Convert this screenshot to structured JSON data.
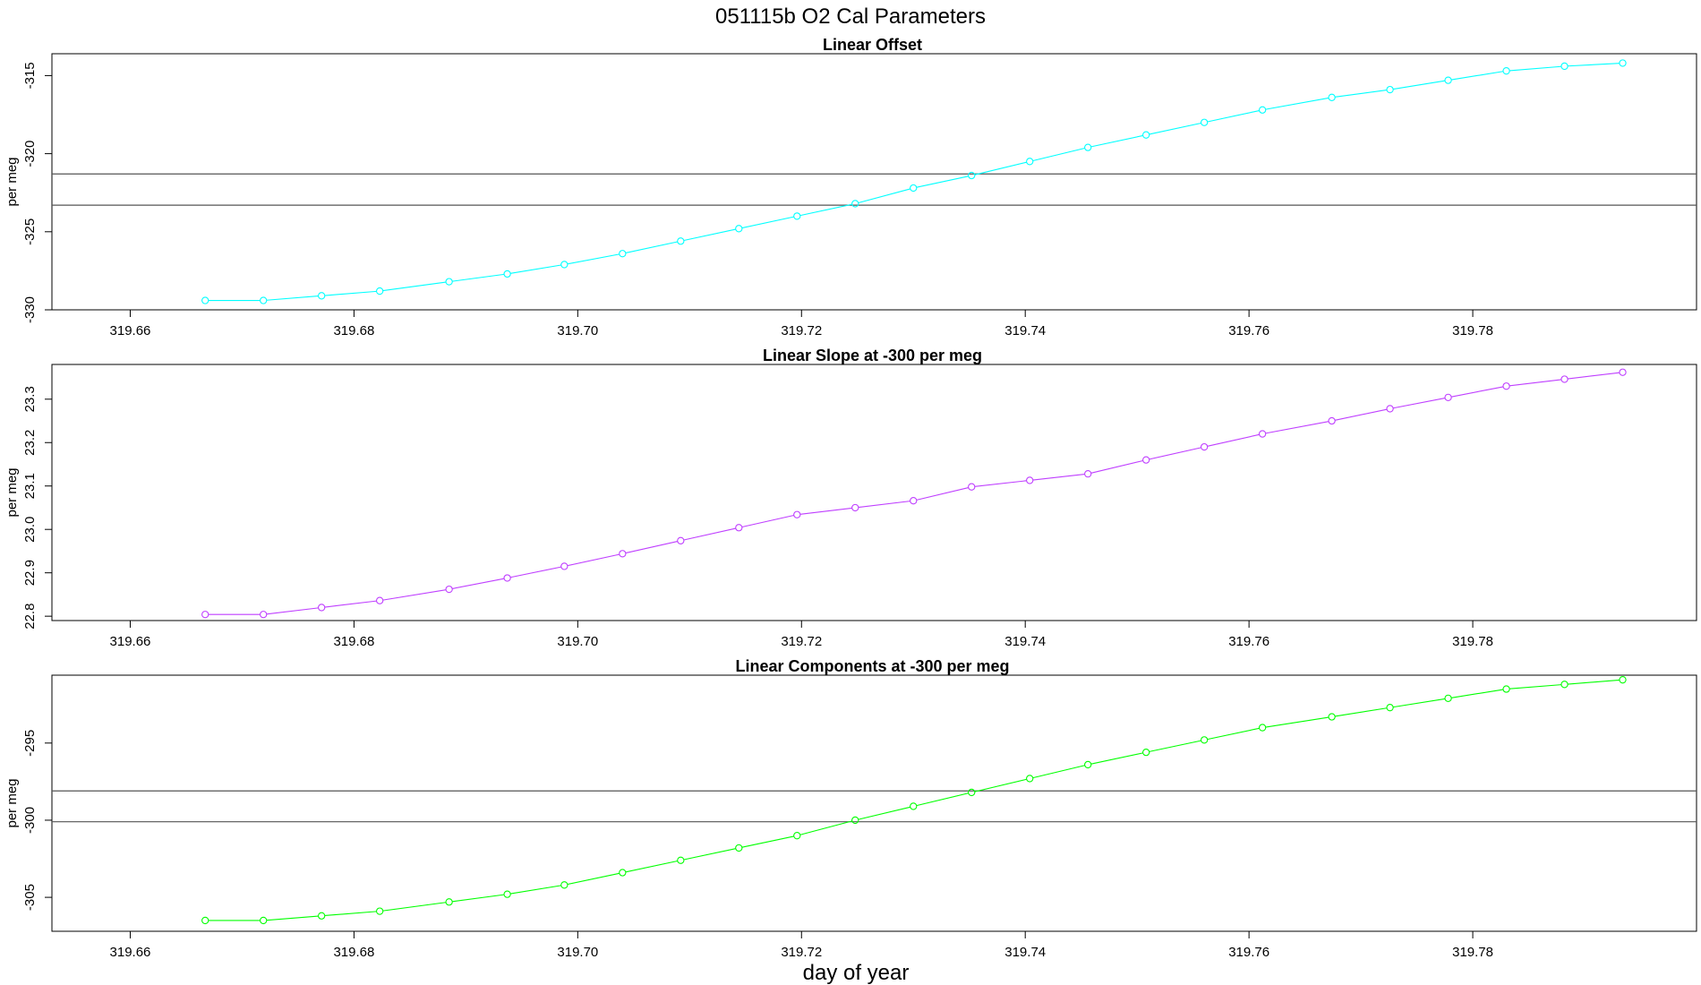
{
  "figure": {
    "title": "051115b   O2 Cal Parameters",
    "xlabel": "day of year"
  },
  "chart_data": [
    {
      "type": "line",
      "title": "Linear Offset",
      "ylabel": "per meg",
      "xlabel": "",
      "color": "#00ffff",
      "xlim": [
        319.653,
        319.8
      ],
      "ylim": [
        -330.0,
        -313.6
      ],
      "xticks": [
        319.66,
        319.68,
        319.7,
        319.72,
        319.74,
        319.76,
        319.78
      ],
      "xtick_labels": [
        "319.66",
        "319.68",
        "319.70",
        "319.72",
        "319.74",
        "319.76",
        "319.78"
      ],
      "yticks": [
        -330,
        -325,
        -320,
        -315
      ],
      "ytick_labels": [
        "-330",
        "-325",
        "-320",
        "-315"
      ],
      "hlines": [
        -321.3,
        -323.3
      ],
      "x": [
        319.6667,
        319.6719,
        319.6771,
        319.6823,
        319.6885,
        319.6937,
        319.6988,
        319.704,
        319.7092,
        319.7144,
        319.7196,
        319.7248,
        319.73,
        319.7352,
        319.7404,
        319.7456,
        319.7508,
        319.756,
        319.7612,
        319.7674,
        319.7726,
        319.7778,
        319.783,
        319.7882,
        319.7934
      ],
      "series": [
        {
          "values": [
            -329.4,
            -329.4,
            -329.1,
            -328.8,
            -328.2,
            -327.7,
            -327.1,
            -326.4,
            -325.6,
            -324.8,
            -324.0,
            -323.2,
            -322.2,
            -321.4,
            -320.5,
            -319.6,
            -318.8,
            -318.0,
            -317.2,
            -316.4,
            -315.9,
            -315.3,
            -314.7,
            -314.4,
            -314.2
          ]
        }
      ]
    },
    {
      "type": "line",
      "title": "Linear Slope at -300 per meg",
      "ylabel": "per meg",
      "xlabel": "",
      "color": "#bf3fff",
      "xlim": [
        319.653,
        319.8
      ],
      "ylim": [
        22.79,
        23.38
      ],
      "xticks": [
        319.66,
        319.68,
        319.7,
        319.72,
        319.74,
        319.76,
        319.78
      ],
      "xtick_labels": [
        "319.66",
        "319.68",
        "319.70",
        "319.72",
        "319.74",
        "319.76",
        "319.78"
      ],
      "yticks": [
        22.8,
        22.9,
        23.0,
        23.1,
        23.2,
        23.3
      ],
      "ytick_labels": [
        "22.8",
        "22.9",
        "23.0",
        "23.1",
        "23.2",
        "23.3"
      ],
      "hlines": [],
      "x": [
        319.6667,
        319.6719,
        319.6771,
        319.6823,
        319.6885,
        319.6937,
        319.6988,
        319.704,
        319.7092,
        319.7144,
        319.7196,
        319.7248,
        319.73,
        319.7352,
        319.7404,
        319.7456,
        319.7508,
        319.756,
        319.7612,
        319.7674,
        319.7726,
        319.7778,
        319.783,
        319.7882,
        319.7934
      ],
      "series": [
        {
          "values": [
            22.804,
            22.804,
            22.82,
            22.836,
            22.862,
            22.888,
            22.915,
            22.944,
            22.974,
            23.004,
            23.034,
            23.05,
            23.066,
            23.098,
            23.113,
            23.128,
            23.16,
            23.19,
            23.22,
            23.25,
            23.278,
            23.304,
            23.33,
            23.346,
            23.362
          ]
        }
      ]
    },
    {
      "type": "line",
      "title": "Linear Components at -300 per meg",
      "ylabel": "per meg",
      "xlabel": "day of year",
      "color": "#00ff00",
      "xlim": [
        319.653,
        319.8
      ],
      "ylim": [
        -307.2,
        -290.6
      ],
      "xticks": [
        319.66,
        319.68,
        319.7,
        319.72,
        319.74,
        319.76,
        319.78
      ],
      "xtick_labels": [
        "319.66",
        "319.68",
        "319.70",
        "319.72",
        "319.74",
        "319.76",
        "319.78"
      ],
      "yticks": [
        -305,
        -300,
        -295
      ],
      "ytick_labels": [
        "-305",
        "-300",
        "-295"
      ],
      "hlines": [
        -298.1,
        -300.1
      ],
      "x": [
        319.6667,
        319.6719,
        319.6771,
        319.6823,
        319.6885,
        319.6937,
        319.6988,
        319.704,
        319.7092,
        319.7144,
        319.7196,
        319.7248,
        319.73,
        319.7352,
        319.7404,
        319.7456,
        319.7508,
        319.756,
        319.7612,
        319.7674,
        319.7726,
        319.7778,
        319.783,
        319.7882,
        319.7934
      ],
      "series": [
        {
          "values": [
            -306.5,
            -306.5,
            -306.2,
            -305.9,
            -305.3,
            -304.8,
            -304.2,
            -303.4,
            -302.6,
            -301.8,
            -301.0,
            -300.0,
            -299.1,
            -298.2,
            -297.3,
            -296.4,
            -295.6,
            -294.8,
            -294.0,
            -293.3,
            -292.7,
            -292.1,
            -291.5,
            -291.2,
            -290.9
          ]
        }
      ]
    }
  ]
}
